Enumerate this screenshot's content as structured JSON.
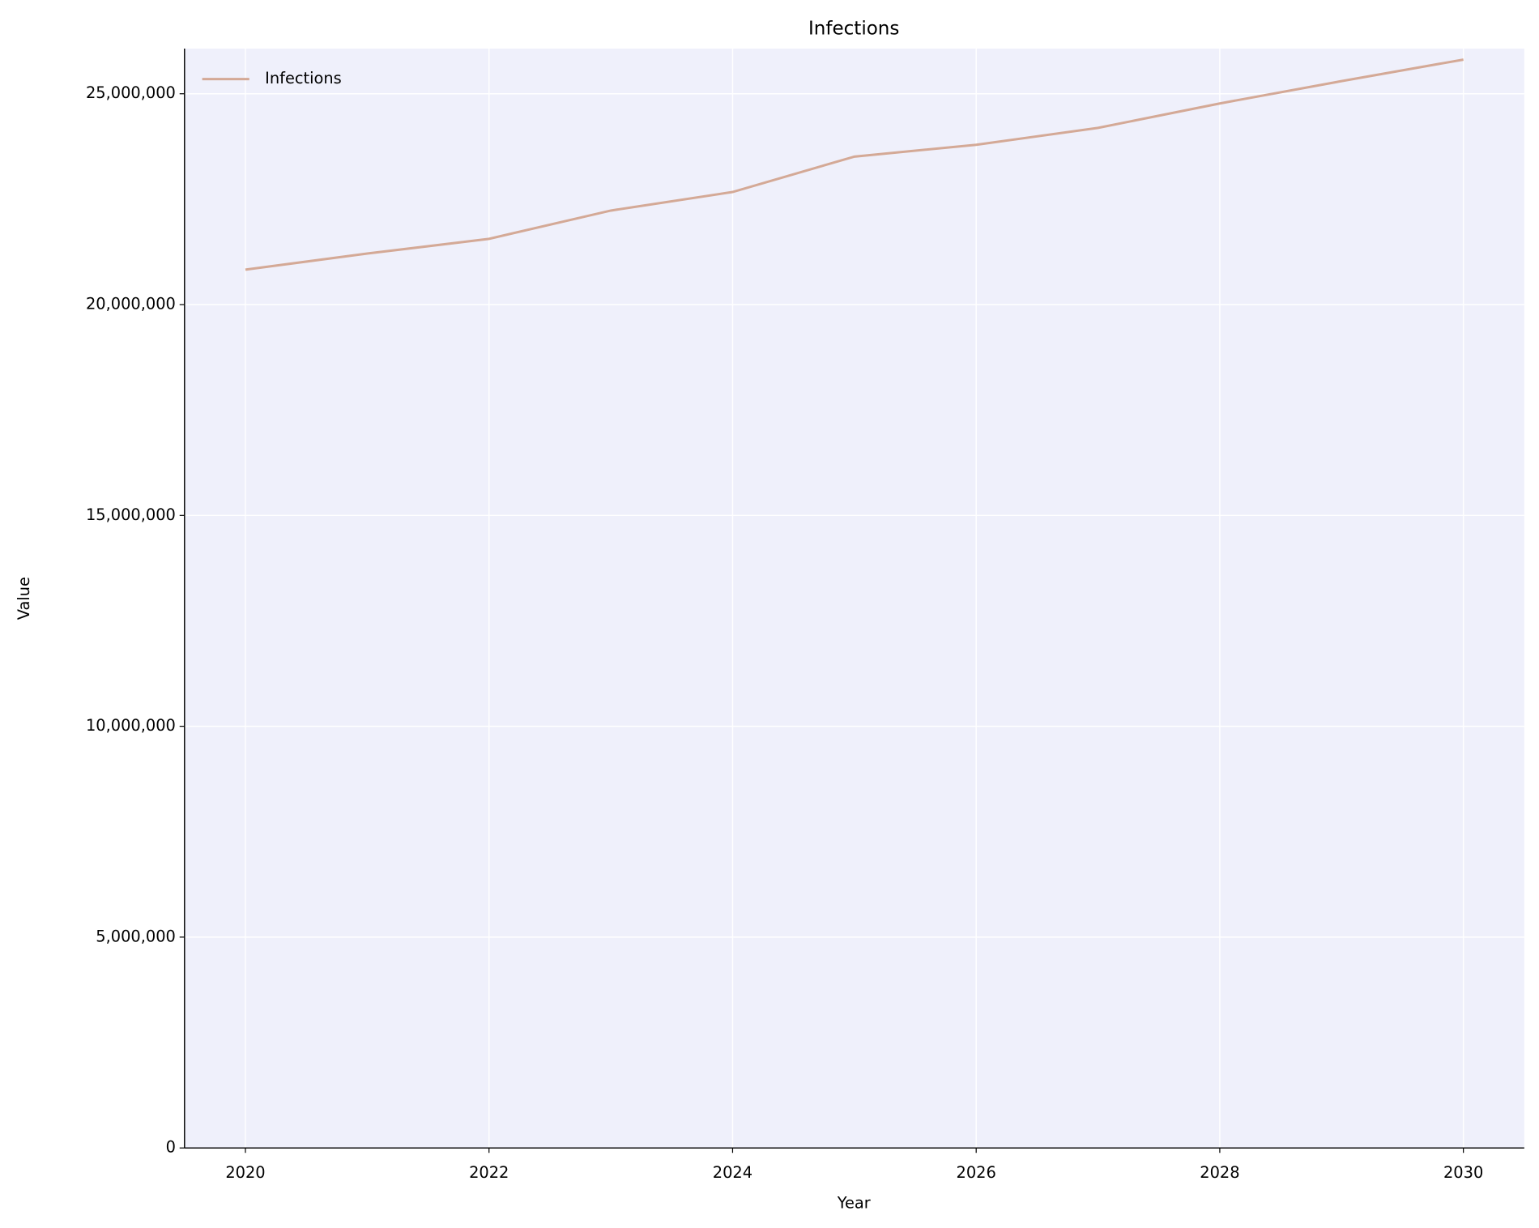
{
  "chart_data": {
    "type": "line",
    "title": "Infections",
    "x_label": "Year",
    "y_label": "Value",
    "x": [
      2020,
      2021,
      2022,
      2023,
      2024,
      2025,
      2026,
      2027,
      2028,
      2029,
      2030
    ],
    "series": [
      {
        "name": "Infections",
        "color": "#d4a996",
        "values": [
          20830000,
          21210000,
          21560000,
          22230000,
          22670000,
          23510000,
          23790000,
          24190000,
          24770000,
          25300000,
          25810000
        ]
      }
    ],
    "xlim": [
      2019.5,
      2030.5
    ],
    "xticks": [
      2020,
      2022,
      2024,
      2026,
      2028,
      2030
    ],
    "ylim": [
      0,
      26070000
    ],
    "yticks": [
      0,
      {
        "value": 5000000,
        "label": "5,000,000"
      },
      {
        "value": 10000000,
        "label": "10,000,000"
      },
      {
        "value": 15000000,
        "label": "15,000,000"
      },
      {
        "value": 20000000,
        "label": "20,000,000"
      },
      {
        "value": 25000000,
        "label": "25,000,000"
      }
    ],
    "grid": true,
    "legend": "upper-left",
    "background": "#eff0fb"
  }
}
